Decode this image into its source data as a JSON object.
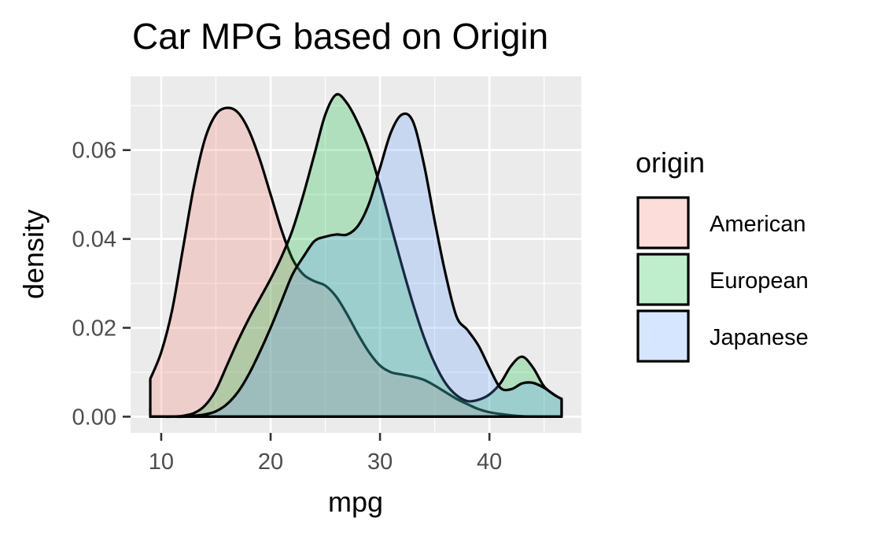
{
  "chart_data": {
    "type": "area",
    "title": "Car MPG based on Origin",
    "xlabel": "mpg",
    "ylabel": "density",
    "xlim": [
      7.2,
      48.4
    ],
    "ylim": [
      -0.00365,
      0.0766
    ],
    "x_ticks": [
      10,
      20,
      30,
      40
    ],
    "x_tick_labels": [
      "10",
      "20",
      "30",
      "40"
    ],
    "y_ticks": [
      0.0,
      0.02,
      0.04,
      0.06
    ],
    "y_tick_labels": [
      "0.00",
      "0.02",
      "0.04",
      "0.06"
    ],
    "grid": true,
    "legend": {
      "title": "origin",
      "position": "right"
    },
    "series": [
      {
        "name": "American",
        "fill": "#F8766D",
        "x": [
          9,
          10,
          11,
          12,
          13,
          14,
          15,
          16,
          17,
          18,
          19,
          20,
          21,
          22,
          23,
          24,
          25,
          26,
          27,
          28,
          29,
          30,
          31,
          32,
          33,
          34,
          35,
          36,
          37,
          38,
          39,
          40,
          41,
          42,
          43,
          44,
          45,
          46,
          46.6
        ],
        "y": [
          0.0085,
          0.0145,
          0.024,
          0.038,
          0.052,
          0.0625,
          0.068,
          0.0695,
          0.0685,
          0.0645,
          0.058,
          0.05,
          0.042,
          0.0355,
          0.032,
          0.0305,
          0.0295,
          0.027,
          0.023,
          0.0185,
          0.0145,
          0.0115,
          0.01,
          0.0095,
          0.009,
          0.0083,
          0.007,
          0.0055,
          0.004,
          0.0028,
          0.0017,
          0.001,
          0.0006,
          0.0003,
          0.0001,
          0.0,
          0.0,
          0.0,
          0.0
        ]
      },
      {
        "name": "European",
        "fill": "#00BA38",
        "x": [
          9,
          10,
          11,
          12,
          13,
          14,
          15,
          16,
          17,
          18,
          19,
          20,
          21,
          22,
          23,
          24,
          25,
          26,
          27,
          28,
          29,
          30,
          31,
          32,
          33,
          34,
          35,
          36,
          37,
          38,
          39,
          40,
          41,
          42,
          43,
          44,
          45,
          46,
          46.6
        ],
        "y": [
          0.0,
          0.0,
          0.0,
          0.0002,
          0.0008,
          0.0025,
          0.006,
          0.0115,
          0.017,
          0.022,
          0.0265,
          0.031,
          0.036,
          0.042,
          0.05,
          0.059,
          0.068,
          0.0725,
          0.0705,
          0.066,
          0.06,
          0.052,
          0.043,
          0.034,
          0.0255,
          0.018,
          0.012,
          0.0075,
          0.0048,
          0.0035,
          0.0038,
          0.005,
          0.0075,
          0.0115,
          0.0135,
          0.011,
          0.0068,
          0.0048,
          0.004
        ]
      },
      {
        "name": "Japanese",
        "fill": "#619CFF",
        "x": [
          9,
          10,
          11,
          12,
          13,
          14,
          15,
          16,
          17,
          18,
          19,
          20,
          21,
          22,
          23,
          24,
          25,
          26,
          27,
          28,
          29,
          30,
          31,
          32,
          33,
          34,
          35,
          36,
          37,
          38,
          39,
          40,
          41,
          42,
          43,
          44,
          45,
          46,
          46.6
        ],
        "y": [
          0.0,
          0.0,
          0.0,
          0.0,
          0.0002,
          0.0005,
          0.0012,
          0.0028,
          0.0055,
          0.0095,
          0.0145,
          0.02,
          0.026,
          0.032,
          0.036,
          0.0395,
          0.0405,
          0.041,
          0.041,
          0.043,
          0.048,
          0.056,
          0.064,
          0.068,
          0.0665,
          0.057,
          0.044,
          0.032,
          0.0225,
          0.0195,
          0.016,
          0.011,
          0.0065,
          0.0062,
          0.0075,
          0.0076,
          0.0065,
          0.0048,
          0.004
        ]
      }
    ]
  }
}
